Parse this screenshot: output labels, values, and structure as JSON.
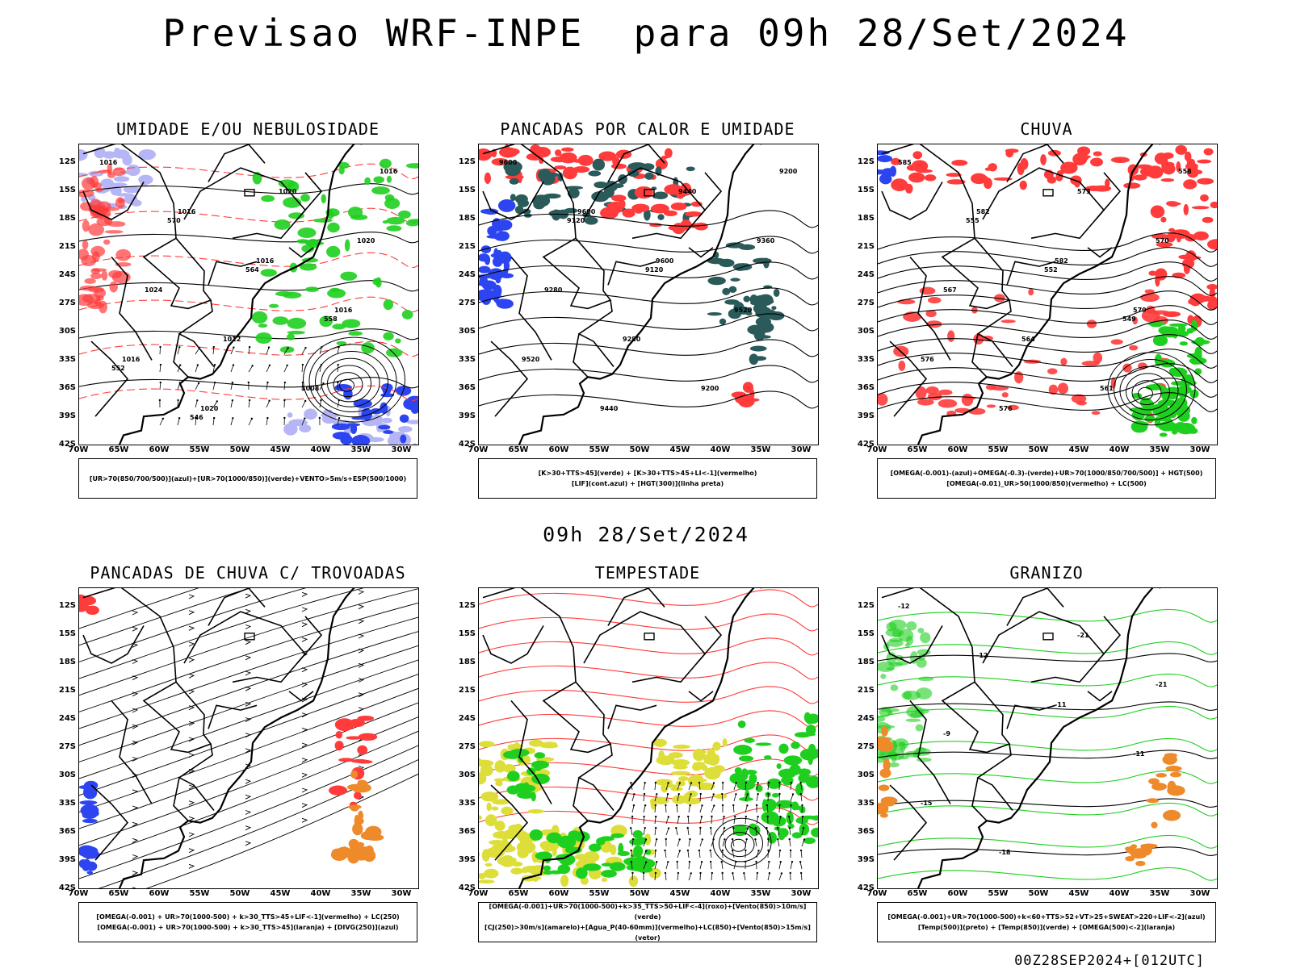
{
  "title": "Previsao WRF-INPE  para 09h 28/Set/2024",
  "subtitle": "09h 28/Set/2024",
  "footer": "00Z28SEP2024+[012UTC]",
  "axes": {
    "lat_labels": [
      "12S",
      "15S",
      "18S",
      "21S",
      "24S",
      "27S",
      "30S",
      "33S",
      "36S",
      "39S",
      "42S"
    ],
    "lon_labels": [
      "70W",
      "65W",
      "60W",
      "55W",
      "50W",
      "45W",
      "40W",
      "35W",
      "30W"
    ]
  },
  "colors": {
    "red": "#ff3b3b",
    "green": "#1fcf1f",
    "blue": "#2c45f0",
    "lavender": "#b6b6f6",
    "teal": "#2a5a5a",
    "yellow": "#dede3a",
    "orange": "#ee8a2a",
    "contour": "#000000"
  },
  "panels": [
    {
      "title": "UMIDADE E/OU NEBULOSIDADE",
      "legend": [
        "[UR>70(850/700/500)](azul)+[UR>70(1000/850)](verde)+VENTO>5m/s+ESP(500/1000)"
      ],
      "contour_labels": [
        "1016",
        "1016",
        "1016",
        "1016",
        "1016",
        "1020",
        "1020",
        "1020",
        "1024",
        "1012",
        "1008",
        "1016",
        "570",
        "564",
        "558",
        "552",
        "546"
      ]
    },
    {
      "title": "PANCADAS POR CALOR E UMIDADE",
      "legend": [
        "[K>30+TTS>45](verde) + [K>30+TTS>45+LI<-1](vermelho)",
        "[LIF](cont.azul) + [HGT(300)](linha preta)"
      ],
      "contour_labels": [
        "9600",
        "9600",
        "9600",
        "9520",
        "9520",
        "9440",
        "9440",
        "9360",
        "9280",
        "9280",
        "9200",
        "9200",
        "9120",
        "9120"
      ]
    },
    {
      "title": "CHUVA",
      "legend": [
        "[OMEGA(-0.001)-(azul)+OMEGA(-0.3)-(verde)+UR>70(1000/850/700/500)] + HGT(500)",
        "[OMEGA(-0.01)_UR>50(1000/850)(vermelho) + LC(500)"
      ],
      "contour_labels": [
        "585",
        "582",
        "582",
        "579",
        "576",
        "576",
        "573",
        "570",
        "567",
        "564",
        "561",
        "558",
        "555",
        "552",
        "549"
      ]
    },
    {
      "title": "PANCADAS DE CHUVA C/ TROVOADAS",
      "legend": [
        "[OMEGA(-0.001) + UR>70(1000-500) + k>30_TTS>45+LIF<-1](vermelho) + LC(250)",
        "[OMEGA(-0.001) + UR>70(1000-500) + k>30_TTS>45](laranja) + [DIVG(250)](azul)"
      ],
      "contour_labels": []
    },
    {
      "title": "TEMPESTADE",
      "legend": [
        "[OMEGA(-0.001)+UR>70(1000-500)+k>35_TTS>50+LIF<-4](roxo)+[Vento(850)>10m/s](verde)",
        "[CJ(250)>30m/s](amarelo)+[Agua_P(40-60mm)](vermelho)+LC(850)+[Vento(850)>15m/s](vetor)"
      ],
      "contour_labels": []
    },
    {
      "title": "GRANIZO",
      "legend": [
        "[OMEGA(-0.001)+UR>70(1000-500)+k<60+TTS>52+VT>25+SWEAT>220+LIF<-2](azul)",
        "[Temp(500)](preto) + [Temp(850)](verde) + [OMEGA(500)<-2](laranja)"
      ],
      "contour_labels": [
        "-12",
        "-12",
        "-11",
        "-11",
        "-15",
        "-18",
        "-21",
        "-21",
        "-9"
      ]
    }
  ]
}
